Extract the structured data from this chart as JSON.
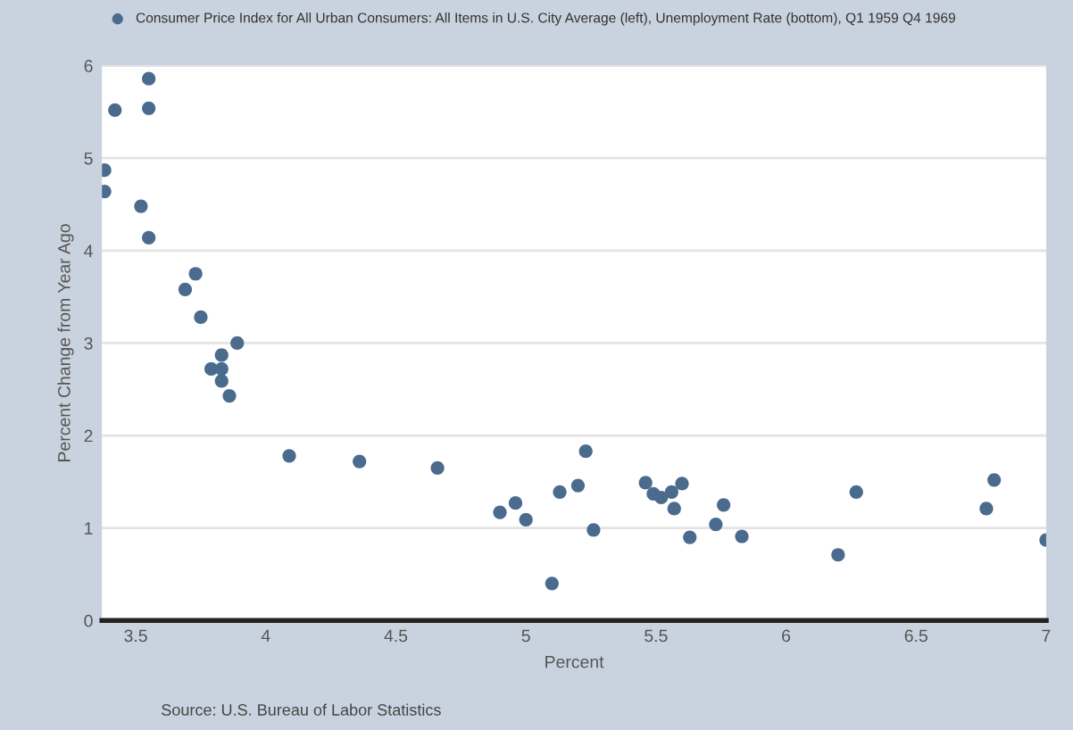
{
  "chart_data": {
    "type": "scatter",
    "xlabel": "Percent",
    "ylabel": "Percent Change from Year Ago",
    "xlim": [
      3.37,
      7
    ],
    "ylim": [
      0,
      6
    ],
    "xticks": [
      3.5,
      4,
      4.5,
      5,
      5.5,
      6,
      6.5,
      7
    ],
    "yticks": [
      0,
      1,
      2,
      3,
      4,
      5,
      6
    ],
    "grid": "y",
    "legend": "top left",
    "marker": "circle",
    "annotations": [
      "Source: U.S. Bureau of Labor Statistics"
    ],
    "series": [
      {
        "name": "Consumer Price Index for All Urban Consumers: All Items in U.S. City Average (left), Unemployment Rate (bottom), Q1 1959 Q4 1969",
        "color": "#4a6b8e",
        "x": [
          3.38,
          3.38,
          3.42,
          3.55,
          3.55,
          3.52,
          3.55,
          3.73,
          3.69,
          3.75,
          3.89,
          3.83,
          3.79,
          3.83,
          3.83,
          3.86,
          4.09,
          4.36,
          4.66,
          4.9,
          4.96,
          5.0,
          5.1,
          5.13,
          5.2,
          5.23,
          5.26,
          5.46,
          5.49,
          5.52,
          5.56,
          5.57,
          5.6,
          5.63,
          5.73,
          5.76,
          5.83,
          6.2,
          6.27,
          6.77,
          6.8,
          7.0
        ],
        "values": [
          4.87,
          4.64,
          5.52,
          5.86,
          5.54,
          4.48,
          4.14,
          3.75,
          3.58,
          3.28,
          3.0,
          2.87,
          2.72,
          2.72,
          2.59,
          2.43,
          1.78,
          1.72,
          1.65,
          1.17,
          1.27,
          1.09,
          0.4,
          1.39,
          1.46,
          1.83,
          0.98,
          1.49,
          1.37,
          1.33,
          1.39,
          1.21,
          1.48,
          0.9,
          1.04,
          1.25,
          0.91,
          0.71,
          1.39,
          1.21,
          1.52,
          0.87
        ]
      }
    ]
  }
}
